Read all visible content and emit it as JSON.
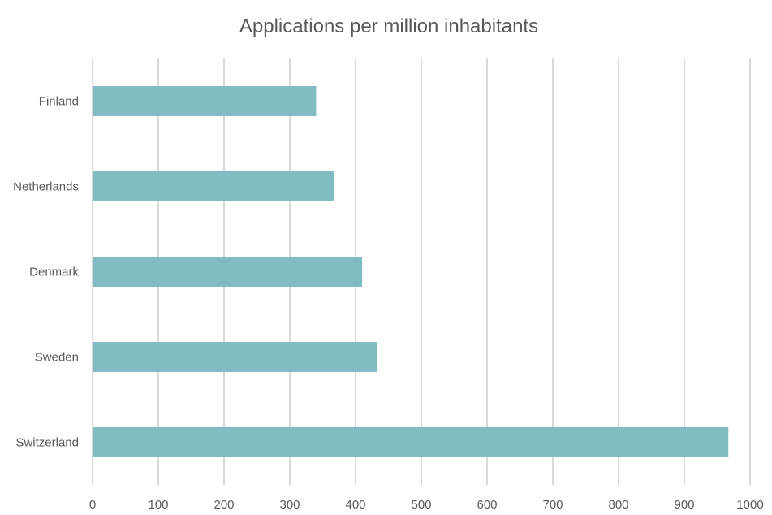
{
  "chart_data": {
    "type": "bar",
    "orientation": "horizontal",
    "title": "Applications per million inhabitants",
    "categories": [
      "Finland",
      "Netherlands",
      "Denmark",
      "Sweden",
      "Switzerland"
    ],
    "values": [
      340,
      368,
      410,
      433,
      967
    ],
    "xlabel": "",
    "ylabel": "",
    "xlim": [
      0,
      1000
    ],
    "xticks": [
      0,
      100,
      200,
      300,
      400,
      500,
      600,
      700,
      800,
      900,
      1000
    ],
    "grid": "vertical",
    "legend": "none",
    "bar_color": "#81bcc3"
  }
}
